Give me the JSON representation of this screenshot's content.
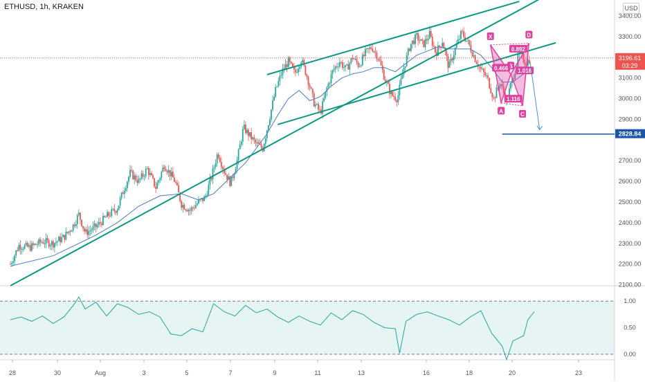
{
  "header": {
    "symbol": "ETHUSD, 1h, KRAKEN",
    "unit": "USD"
  },
  "colors": {
    "up": "#26a69a",
    "down": "#ef5350",
    "trendline": "#089981",
    "ma": "#4a7bbf",
    "pattern": "#e040a0",
    "target": "#1a56a8",
    "rsi_line": "#22a69a",
    "rsi_bg": "#e6f5f3"
  },
  "chart_data": [
    {
      "type": "candlestick",
      "title": "ETHUSD, 1h, KRAKEN",
      "ylim": [
        2090,
        3470
      ],
      "y_ticks": [
        2100,
        2200,
        2300,
        2400,
        2500,
        2600,
        2700,
        2800,
        2900,
        3000,
        3100,
        3200,
        3300,
        3400
      ],
      "x_ticks": [
        "28",
        "30",
        "Aug",
        "3",
        "5",
        "7",
        "9",
        "11",
        "13",
        "16",
        "18",
        "20",
        "23"
      ],
      "price_path": [
        [
          27.0,
          2200
        ],
        [
          27.4,
          2290
        ],
        [
          27.9,
          2280
        ],
        [
          28.5,
          2310
        ],
        [
          29.0,
          2300
        ],
        [
          29.5,
          2330
        ],
        [
          29.9,
          2380
        ],
        [
          30.2,
          2440
        ],
        [
          30.5,
          2350
        ],
        [
          31.0,
          2380
        ],
        [
          31.5,
          2430
        ],
        [
          32.0,
          2470
        ],
        [
          32.3,
          2560
        ],
        [
          32.6,
          2640
        ],
        [
          33.0,
          2600
        ],
        [
          33.4,
          2660
        ],
        [
          33.8,
          2570
        ],
        [
          34.2,
          2680
        ],
        [
          34.7,
          2600
        ],
        [
          35.0,
          2490
        ],
        [
          35.4,
          2460
        ],
        [
          35.8,
          2500
        ],
        [
          36.1,
          2520
        ],
        [
          36.4,
          2620
        ],
        [
          36.7,
          2740
        ],
        [
          37.0,
          2650
        ],
        [
          37.3,
          2590
        ],
        [
          37.6,
          2700
        ],
        [
          37.9,
          2860
        ],
        [
          38.2,
          2820
        ],
        [
          38.5,
          2780
        ],
        [
          38.8,
          2760
        ],
        [
          39.1,
          2900
        ],
        [
          39.4,
          3040
        ],
        [
          39.7,
          3130
        ],
        [
          40.0,
          3180
        ],
        [
          40.3,
          3120
        ],
        [
          40.6,
          3190
        ],
        [
          40.9,
          3100
        ],
        [
          41.2,
          2980
        ],
        [
          41.5,
          2930
        ],
        [
          41.8,
          3050
        ],
        [
          42.1,
          3140
        ],
        [
          42.4,
          3180
        ],
        [
          42.7,
          3140
        ],
        [
          43.0,
          3200
        ],
        [
          43.3,
          3160
        ],
        [
          43.6,
          3220
        ],
        [
          43.9,
          3250
        ],
        [
          44.2,
          3200
        ],
        [
          44.5,
          3100
        ],
        [
          44.8,
          3020
        ],
        [
          45.1,
          3000
        ],
        [
          45.4,
          3150
        ],
        [
          45.7,
          3260
        ],
        [
          46.0,
          3300
        ],
        [
          46.3,
          3260
        ],
        [
          46.6,
          3310
        ],
        [
          46.9,
          3220
        ],
        [
          47.2,
          3280
        ],
        [
          47.5,
          3150
        ],
        [
          47.8,
          3240
        ],
        [
          48.1,
          3320
        ],
        [
          48.4,
          3270
        ],
        [
          48.7,
          3200
        ],
        [
          49.0,
          3140
        ],
        [
          49.3,
          3100
        ],
        [
          49.6,
          3000
        ],
        [
          49.9,
          3080
        ],
        [
          50.2,
          2990
        ],
        [
          50.5,
          3100
        ],
        [
          50.8,
          3220
        ],
        [
          51.1,
          3170
        ],
        [
          51.3,
          3196
        ]
      ],
      "moving_average_path": [
        [
          27.0,
          2190
        ],
        [
          29.0,
          2240
        ],
        [
          30.0,
          2290
        ],
        [
          31.0,
          2340
        ],
        [
          32.0,
          2400
        ],
        [
          33.0,
          2480
        ],
        [
          34.0,
          2530
        ],
        [
          35.0,
          2540
        ],
        [
          35.8,
          2510
        ],
        [
          36.5,
          2540
        ],
        [
          37.0,
          2590
        ],
        [
          37.5,
          2640
        ],
        [
          38.0,
          2690
        ],
        [
          38.5,
          2760
        ],
        [
          39.0,
          2830
        ],
        [
          39.5,
          2920
        ],
        [
          40.0,
          3000
        ],
        [
          40.5,
          3040
        ],
        [
          41.0,
          2990
        ],
        [
          41.5,
          3010
        ],
        [
          42.0,
          3060
        ],
        [
          42.5,
          3100
        ],
        [
          43.0,
          3120
        ],
        [
          43.5,
          3130
        ],
        [
          44.0,
          3150
        ],
        [
          44.5,
          3150
        ],
        [
          45.0,
          3130
        ],
        [
          45.5,
          3170
        ],
        [
          46.0,
          3210
        ],
        [
          46.5,
          3230
        ],
        [
          47.0,
          3250
        ],
        [
          47.5,
          3240
        ],
        [
          48.0,
          3240
        ],
        [
          48.5,
          3240
        ],
        [
          49.0,
          3210
        ],
        [
          49.5,
          3150
        ],
        [
          50.0,
          3080
        ],
        [
          50.5,
          3080
        ],
        [
          51.0,
          3120
        ]
      ],
      "trendlines": [
        {
          "name": "lower-support",
          "from": [
            27.0,
            2095
          ],
          "to": [
            51.9,
            3490
          ]
        },
        {
          "name": "channel-upper",
          "from": [
            39.0,
            3116
          ],
          "to": [
            50.8,
            3470
          ]
        },
        {
          "name": "channel-lower",
          "from": [
            39.5,
            2875
          ],
          "to": [
            52.5,
            3270
          ]
        }
      ],
      "target_level": {
        "value": 2828.84,
        "label": "2828.84",
        "from_x": 50.0
      },
      "current_price": {
        "value": 3196.61,
        "label": "3196.61",
        "countdown": "03:29"
      },
      "projection_arrow": {
        "from": [
          51.3,
          3180
        ],
        "to": [
          51.75,
          2850
        ]
      },
      "harmonic_pattern": {
        "points": [
          {
            "label": "X",
            "x": 49.45,
            "y": 3260
          },
          {
            "label": "A",
            "x": 49.95,
            "y": 2980
          },
          {
            "label": "B",
            "x": 50.4,
            "y": 3118
          },
          {
            "label": "C",
            "x": 50.95,
            "y": 2965
          },
          {
            "label": "D",
            "x": 51.25,
            "y": 3268
          }
        ],
        "ratios": [
          {
            "label": "0.892",
            "x": 50.75,
            "y": 3240
          },
          {
            "label": "0.466",
            "x": 49.95,
            "y": 3148
          },
          {
            "label": "1.018",
            "x": 51.05,
            "y": 3135
          },
          {
            "label": "1.116",
            "x": 50.52,
            "y": 2998
          }
        ]
      }
    },
    {
      "type": "line",
      "name": "oscillator",
      "ylim": [
        -0.2,
        1.25
      ],
      "y_ticks": [
        "1.00",
        "0.50",
        "0.00"
      ],
      "levels": [
        1.0,
        0.0
      ],
      "x": [
        27.0,
        27.5,
        28.0,
        28.5,
        29.0,
        29.5,
        30.0,
        30.2,
        30.5,
        31.0,
        31.5,
        32.0,
        32.5,
        33.0,
        33.5,
        34.0,
        34.5,
        35.0,
        35.5,
        36.0,
        36.5,
        37.0,
        37.5,
        38.0,
        38.5,
        39.0,
        39.5,
        40.0,
        40.5,
        41.0,
        41.5,
        42.0,
        42.5,
        43.0,
        43.5,
        44.0,
        44.5,
        45.0,
        45.2,
        45.5,
        46.0,
        46.5,
        47.0,
        47.5,
        48.0,
        48.5,
        49.0,
        49.5,
        50.0,
        50.2,
        50.5,
        51.0,
        51.2,
        51.5
      ],
      "values": [
        0.65,
        0.7,
        0.62,
        0.72,
        0.58,
        0.7,
        0.95,
        1.08,
        0.85,
        0.98,
        0.72,
        0.95,
        0.88,
        0.75,
        0.8,
        0.7,
        0.38,
        0.35,
        0.48,
        0.42,
        0.95,
        0.8,
        0.72,
        0.92,
        0.78,
        0.85,
        0.7,
        0.6,
        0.72,
        0.62,
        0.55,
        0.78,
        0.65,
        0.82,
        0.75,
        0.6,
        0.5,
        0.48,
        0.02,
        0.62,
        0.75,
        0.8,
        0.72,
        0.65,
        0.55,
        0.7,
        0.82,
        0.4,
        0.15,
        -0.1,
        0.25,
        0.35,
        0.65,
        0.8
      ]
    }
  ]
}
